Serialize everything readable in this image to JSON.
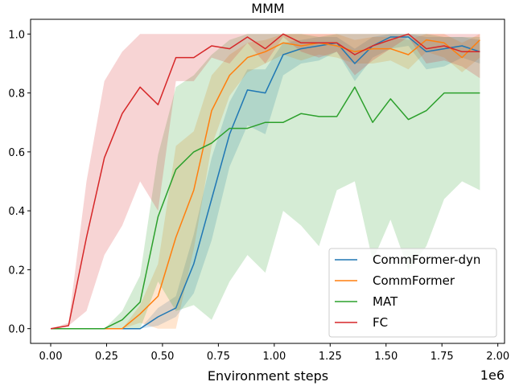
{
  "chart_data": {
    "type": "line",
    "title": "MMM",
    "xlabel": "Environment steps",
    "ylabel": "",
    "x_offset_label": "1e6",
    "xlim": [
      -0.09,
      2.03
    ],
    "ylim": [
      -0.05,
      1.05
    ],
    "x_ticks": [
      0.0,
      0.25,
      0.5,
      0.75,
      1.0,
      1.25,
      1.5,
      1.75,
      2.0
    ],
    "x_tick_labels": [
      "0.00",
      "0.25",
      "0.50",
      "0.75",
      "1.00",
      "1.25",
      "1.50",
      "1.75",
      "2.00"
    ],
    "y_ticks": [
      0.0,
      0.2,
      0.4,
      0.6,
      0.8,
      1.0
    ],
    "y_tick_labels": [
      "0.0",
      "0.2",
      "0.4",
      "0.6",
      "0.8",
      "1.0"
    ],
    "legend_position": "lower-right",
    "grid": false,
    "x": [
      0.0,
      0.08,
      0.16,
      0.24,
      0.32,
      0.4,
      0.48,
      0.56,
      0.64,
      0.72,
      0.8,
      0.88,
      0.96,
      1.04,
      1.12,
      1.2,
      1.28,
      1.36,
      1.44,
      1.52,
      1.6,
      1.68,
      1.76,
      1.84,
      1.92
    ],
    "series": [
      {
        "name": "CommFormer-dyn",
        "color": "#1f77b4",
        "values": [
          0.0,
          0.0,
          0.0,
          0.0,
          0.0,
          0.0,
          0.04,
          0.07,
          0.22,
          0.44,
          0.66,
          0.81,
          0.8,
          0.93,
          0.95,
          0.96,
          0.97,
          0.9,
          0.96,
          0.99,
          0.99,
          0.94,
          0.95,
          0.96,
          0.94
        ],
        "lower": [
          0.0,
          0.0,
          0.0,
          0.0,
          0.0,
          0.0,
          0.01,
          0.04,
          0.12,
          0.3,
          0.55,
          0.69,
          0.66,
          0.86,
          0.9,
          0.91,
          0.94,
          0.84,
          0.92,
          0.95,
          0.96,
          0.88,
          0.89,
          0.92,
          0.9
        ],
        "upper": [
          0.0,
          0.0,
          0.0,
          0.0,
          0.0,
          0.0,
          0.07,
          0.11,
          0.32,
          0.58,
          0.77,
          0.88,
          0.88,
          0.97,
          0.98,
          0.99,
          0.99,
          0.95,
          0.99,
          1.0,
          1.0,
          0.99,
          0.99,
          0.99,
          0.98
        ]
      },
      {
        "name": "CommFormer",
        "color": "#ff7f0e",
        "values": [
          0.0,
          0.0,
          0.0,
          0.0,
          0.0,
          0.05,
          0.11,
          0.31,
          0.47,
          0.74,
          0.86,
          0.92,
          0.94,
          0.97,
          0.96,
          0.97,
          0.96,
          0.94,
          0.95,
          0.95,
          0.93,
          0.98,
          0.97,
          0.92,
          0.98
        ],
        "lower": [
          0.0,
          0.0,
          0.0,
          0.0,
          0.0,
          0.02,
          0.0,
          0.0,
          0.27,
          0.62,
          0.79,
          0.87,
          0.9,
          0.93,
          0.91,
          0.93,
          0.92,
          0.9,
          0.9,
          0.91,
          0.88,
          0.94,
          0.92,
          0.87,
          0.92
        ],
        "upper": [
          0.0,
          0.0,
          0.0,
          0.0,
          0.0,
          0.08,
          0.22,
          0.62,
          0.67,
          0.86,
          0.93,
          0.97,
          0.98,
          1.0,
          1.0,
          1.0,
          1.0,
          0.98,
          0.99,
          0.99,
          0.98,
          1.0,
          1.0,
          0.97,
          1.0
        ]
      },
      {
        "name": "MAT",
        "color": "#2ca02c",
        "values": [
          0.0,
          0.0,
          0.0,
          0.0,
          0.03,
          0.09,
          0.38,
          0.54,
          0.6,
          0.63,
          0.68,
          0.68,
          0.7,
          0.7,
          0.73,
          0.72,
          0.72,
          0.82,
          0.7,
          0.78,
          0.71,
          0.74,
          0.8,
          0.8,
          0.8
        ],
        "lower": [
          0.0,
          0.0,
          0.0,
          0.0,
          0.0,
          0.0,
          0.16,
          0.06,
          0.08,
          0.03,
          0.16,
          0.25,
          0.19,
          0.4,
          0.35,
          0.28,
          0.47,
          0.5,
          0.23,
          0.37,
          0.2,
          0.28,
          0.44,
          0.5,
          0.47
        ],
        "upper": [
          0.0,
          0.0,
          0.0,
          0.0,
          0.06,
          0.18,
          0.59,
          0.82,
          0.86,
          0.93,
          0.98,
          1.0,
          1.0,
          1.0,
          1.0,
          0.99,
          1.0,
          1.0,
          1.0,
          1.0,
          1.0,
          1.0,
          0.99,
          0.99,
          0.99
        ]
      },
      {
        "name": "FC",
        "color": "#d62728",
        "values": [
          0.0,
          0.01,
          0.31,
          0.58,
          0.73,
          0.82,
          0.76,
          0.92,
          0.92,
          0.96,
          0.95,
          0.99,
          0.95,
          1.0,
          0.97,
          0.97,
          0.97,
          0.93,
          0.96,
          0.98,
          1.0,
          0.95,
          0.96,
          0.94,
          0.94
        ],
        "lower": [
          0.0,
          0.01,
          0.06,
          0.25,
          0.35,
          0.5,
          0.4,
          0.84,
          0.84,
          0.92,
          0.9,
          0.97,
          0.9,
          0.99,
          0.94,
          0.92,
          0.94,
          0.86,
          0.91,
          0.95,
          0.99,
          0.9,
          0.91,
          0.89,
          0.85
        ],
        "upper": [
          0.0,
          0.02,
          0.5,
          0.84,
          0.94,
          1.0,
          1.0,
          1.0,
          1.0,
          1.0,
          1.0,
          1.0,
          1.0,
          1.0,
          1.0,
          1.0,
          1.0,
          1.0,
          1.0,
          1.0,
          1.0,
          1.0,
          1.0,
          1.0,
          1.0
        ]
      }
    ]
  }
}
